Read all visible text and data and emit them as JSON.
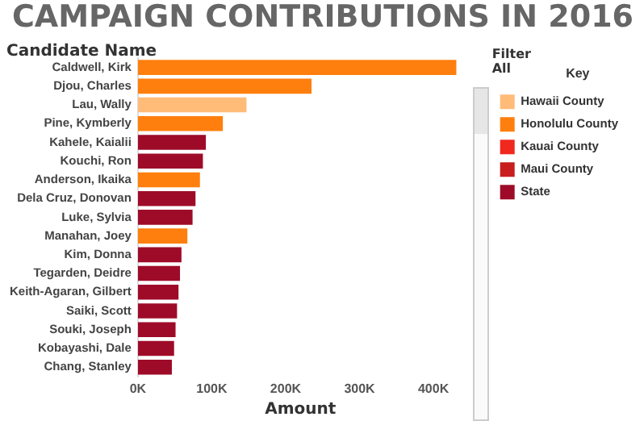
{
  "chart_data": {
    "type": "bar",
    "orientation": "horizontal",
    "stacked": true,
    "title": "CAMPAIGN CONTRIBUTIONS IN 2016",
    "ylabel": "Candidate Name",
    "xlabel": "Amount",
    "legend_title": "Key",
    "legend": "right",
    "grid": false,
    "annotations": [
      "Filter",
      "All"
    ],
    "categories": [
      "Caldwell, Kirk",
      "Djou, Charles",
      "Lau, Wally",
      "Pine, Kymberly",
      "Kahele, Kaialii",
      "Kouchi, Ron",
      "Anderson, Ikaika",
      "Dela Cruz, Donovan",
      "Luke, Sylvia",
      "Manahan, Joey",
      "Kim, Donna",
      "Tegarden, Deidre",
      "Keith-Agaran, Gilbert",
      "Saiki, Scott",
      "Souki, Joseph",
      "Kobayashi, Dale",
      "Chang, Stanley"
    ],
    "xlim": [
      0,
      440000
    ],
    "xticks": [
      {
        "value": 0,
        "label": "0K"
      },
      {
        "value": 100000,
        "label": "100K"
      },
      {
        "value": 200000,
        "label": "200K"
      },
      {
        "value": 300000,
        "label": "300K"
      },
      {
        "value": 400000,
        "label": "400K"
      }
    ],
    "series": [
      {
        "name": "Hawaii County",
        "color": "#ffbb78",
        "values": [
          null,
          null,
          147000,
          null,
          null,
          null,
          null,
          null,
          null,
          null,
          null,
          null,
          null,
          null,
          null,
          null,
          null
        ]
      },
      {
        "name": "Honolulu County",
        "color": "#ff7f0e",
        "values": [
          431000,
          235000,
          null,
          115000,
          null,
          null,
          84000,
          null,
          null,
          67000,
          null,
          null,
          null,
          null,
          null,
          null,
          null
        ]
      },
      {
        "name": "Kauai County",
        "color": "#f0281e",
        "values": [
          null,
          null,
          null,
          null,
          null,
          null,
          null,
          null,
          null,
          null,
          null,
          null,
          null,
          null,
          null,
          null,
          null
        ]
      },
      {
        "name": "Maui County",
        "color": "#c81e1e",
        "values": [
          null,
          null,
          null,
          null,
          null,
          null,
          null,
          null,
          null,
          null,
          null,
          null,
          null,
          null,
          null,
          null,
          null
        ]
      },
      {
        "name": "State",
        "color": "#9e0b28",
        "values": [
          null,
          null,
          null,
          null,
          92000,
          88000,
          null,
          78000,
          74000,
          null,
          59000,
          57000,
          55000,
          53000,
          51000,
          49000,
          46000
        ]
      }
    ]
  }
}
